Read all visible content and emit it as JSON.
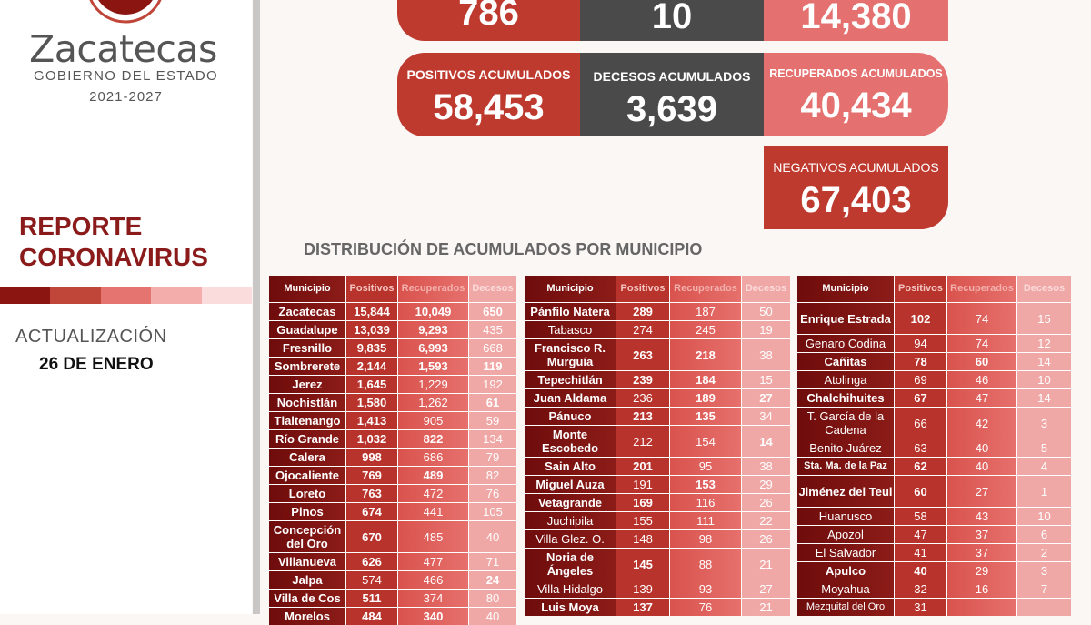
{
  "sidebar": {
    "brand_name": "Zacatecas",
    "brand_subtitle": "GOBIERNO DEL ESTADO",
    "brand_years": "2021-2027",
    "report_line1": "REPORTE",
    "report_line2": "CORONAVIRUS",
    "update_label": "ACTUALIZACIÓN",
    "update_date": "26 DE ENERO",
    "stripe_colors": [
      "#8b1510",
      "#c0463a",
      "#e57471",
      "#f3aeac",
      "#fbdcdc"
    ]
  },
  "colors": {
    "red": "#be3a2f",
    "gray": "#4b4a4a",
    "pink": "#e4716f",
    "dark_red": "#8b1a1a"
  },
  "cards": {
    "top": {
      "positivos": "786",
      "decesos": "10",
      "recuperados": "14,380"
    },
    "positivos_acumulados": {
      "label": "POSITIVOS ACUMULADOS",
      "value": "58,453"
    },
    "decesos_acumulados": {
      "label": "DECESOS ACUMULADOS",
      "value": "3,639"
    },
    "recuperados_acumulados": {
      "label": "RECUPERADOS ACUMULADOS",
      "value": "40,434"
    },
    "negativos_acumulados": {
      "label": "NEGATIVOS ACUMULADOS",
      "value": "67,403"
    }
  },
  "section_title": "DISTRIBUCIÓN DE ACUMULADOS POR MUNICIPIO",
  "tables": [
    {
      "headers": [
        "Municipio",
        "Positivos",
        "Recuperados",
        "Decesos"
      ],
      "rows": [
        {
          "cells": [
            "Zacatecas",
            "15,844",
            "10,049",
            "650"
          ],
          "bold": "1111"
        },
        {
          "cells": [
            "Guadalupe",
            "13,039",
            "9,293",
            "435"
          ],
          "bold": "1110"
        },
        {
          "cells": [
            "Fresnillo",
            "9,835",
            "6,993",
            "668"
          ],
          "bold": "1110"
        },
        {
          "cells": [
            "Sombrerete",
            "2,144",
            "1,593",
            "119"
          ],
          "bold": "1111"
        },
        {
          "cells": [
            "Jerez",
            "1,645",
            "1,229",
            "192"
          ],
          "bold": "1100"
        },
        {
          "cells": [
            "Nochistlán",
            "1,580",
            "1,262",
            "61"
          ],
          "bold": "1101"
        },
        {
          "cells": [
            "Tlaltenango",
            "1,413",
            "905",
            "59"
          ],
          "bold": "1100"
        },
        {
          "cells": [
            "Río Grande",
            "1,032",
            "822",
            "134"
          ],
          "bold": "1110"
        },
        {
          "cells": [
            "Calera",
            "998",
            "686",
            "79"
          ],
          "bold": "1100"
        },
        {
          "cells": [
            "Ojocaliente",
            "769",
            "489",
            "82"
          ],
          "bold": "1110"
        },
        {
          "cells": [
            "Loreto",
            "763",
            "472",
            "76"
          ],
          "bold": "1100"
        },
        {
          "cells": [
            "Pinos",
            "674",
            "441",
            "105"
          ],
          "bold": "1100"
        },
        {
          "cells": [
            "Concepción del Oro",
            "670",
            "485",
            "40"
          ],
          "bold": "1100",
          "double": true
        },
        {
          "cells": [
            "Villanueva",
            "626",
            "477",
            "71"
          ],
          "bold": "1100"
        },
        {
          "cells": [
            "Jalpa",
            "574",
            "466",
            "24"
          ],
          "bold": "1001"
        },
        {
          "cells": [
            "Villa de Cos",
            "511",
            "374",
            "80"
          ],
          "bold": "1100"
        },
        {
          "cells": [
            "Morelos",
            "484",
            "340",
            "40"
          ],
          "bold": "1110"
        }
      ]
    },
    {
      "headers": [
        "Municipio",
        "Positivos",
        "Recuperados",
        "Decesos"
      ],
      "rows": [
        {
          "cells": [
            "Pánfilo Natera",
            "289",
            "187",
            "50"
          ],
          "bold": "1100"
        },
        {
          "cells": [
            "Tabasco",
            "274",
            "245",
            "19"
          ],
          "bold": "0000"
        },
        {
          "cells": [
            "Francisco R. Murguía",
            "263",
            "218",
            "38"
          ],
          "bold": "1110",
          "double": true
        },
        {
          "cells": [
            "Tepechitlán",
            "239",
            "184",
            "15"
          ],
          "bold": "1110"
        },
        {
          "cells": [
            "Juan Aldama",
            "236",
            "189",
            "27"
          ],
          "bold": "1011"
        },
        {
          "cells": [
            "Pánuco",
            "213",
            "135",
            "34"
          ],
          "bold": "1110"
        },
        {
          "cells": [
            "Monte Escobedo",
            "212",
            "154",
            "14"
          ],
          "bold": "1001",
          "double": true
        },
        {
          "cells": [
            "Sain Alto",
            "201",
            "95",
            "38"
          ],
          "bold": "1100"
        },
        {
          "cells": [
            "Miguel Auza",
            "191",
            "153",
            "29"
          ],
          "bold": "1010"
        },
        {
          "cells": [
            "Vetagrande",
            "169",
            "116",
            "26"
          ],
          "bold": "1100"
        },
        {
          "cells": [
            "Juchipila",
            "155",
            "111",
            "22"
          ],
          "bold": "0000"
        },
        {
          "cells": [
            "Villa Glez. O.",
            "148",
            "98",
            "26"
          ],
          "bold": "0000"
        },
        {
          "cells": [
            "Noria de Ángeles",
            "145",
            "88",
            "21"
          ],
          "bold": "1100",
          "double": true
        },
        {
          "cells": [
            "Villa Hidalgo",
            "139",
            "93",
            "27"
          ],
          "bold": "0000"
        },
        {
          "cells": [
            "Luis Moya",
            "137",
            "76",
            "21"
          ],
          "bold": "1100"
        }
      ]
    },
    {
      "headers": [
        "Municipio",
        "Positivos",
        "Recuperados",
        "Decesos"
      ],
      "rows": [
        {
          "cells": [
            "Enrique Estrada",
            "102",
            "74",
            "15"
          ],
          "bold": "1100",
          "double": true
        },
        {
          "cells": [
            "Genaro Codina",
            "94",
            "74",
            "12"
          ],
          "bold": "0000"
        },
        {
          "cells": [
            "Cañitas",
            "78",
            "60",
            "14"
          ],
          "bold": "1110"
        },
        {
          "cells": [
            "Atolinga",
            "69",
            "46",
            "10"
          ],
          "bold": "0000"
        },
        {
          "cells": [
            "Chalchihuites",
            "67",
            "47",
            "14"
          ],
          "bold": "1100"
        },
        {
          "cells": [
            "T. García de la Cadena",
            "66",
            "42",
            "3"
          ],
          "bold": "0000",
          "double": true
        },
        {
          "cells": [
            "Benito Juárez",
            "63",
            "40",
            "5"
          ],
          "bold": "0000"
        },
        {
          "cells": [
            "Sta. Ma. de la Paz",
            "62",
            "40",
            "4"
          ],
          "bold": "1100"
        },
        {
          "cells": [
            "Jiménez del Teul",
            "60",
            "27",
            "1"
          ],
          "bold": "1100",
          "double": true
        },
        {
          "cells": [
            "Huanusco",
            "58",
            "43",
            "10"
          ],
          "bold": "0000"
        },
        {
          "cells": [
            "Apozol",
            "47",
            "37",
            "6"
          ],
          "bold": "0000"
        },
        {
          "cells": [
            "El Salvador",
            "41",
            "37",
            "2"
          ],
          "bold": "0000"
        },
        {
          "cells": [
            "Apulco",
            "40",
            "29",
            "3"
          ],
          "bold": "1100"
        },
        {
          "cells": [
            "Moyahua",
            "32",
            "16",
            "7"
          ],
          "bold": "0000"
        },
        {
          "cells": [
            "Mezquital del Oro",
            "31",
            "",
            ""
          ],
          "bold": "0000"
        }
      ]
    }
  ]
}
